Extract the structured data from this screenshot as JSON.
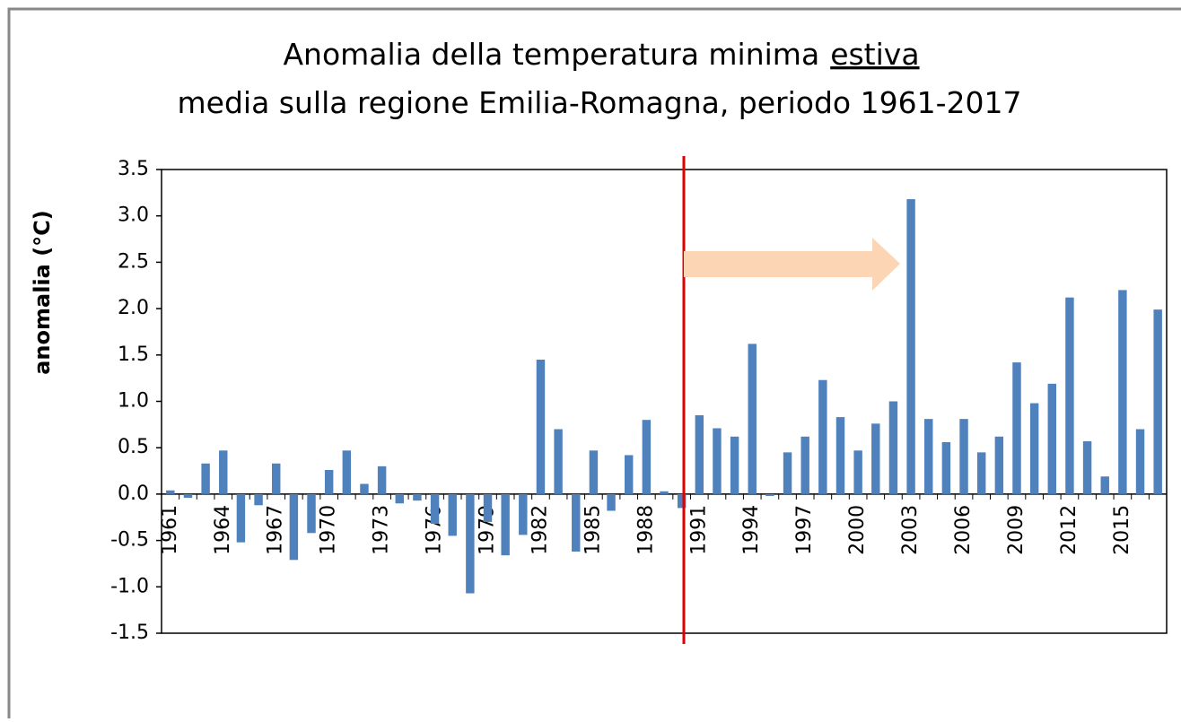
{
  "chart_data": {
    "type": "bar",
    "title": "Anomalia della temperatura minima",
    "title_emphasis": "estiva",
    "subtitle": "media sulla regione Emilia-Romagna, periodo 1961-2017",
    "y_label": "anomalia (°C)",
    "categories": [
      "1961",
      null,
      null,
      "1964",
      null,
      null,
      "1967",
      null,
      null,
      "1970",
      null,
      null,
      "1973",
      null,
      null,
      "1976",
      null,
      null,
      "1979",
      null,
      null,
      "1982",
      null,
      null,
      "1985",
      null,
      null,
      "1988",
      null,
      null,
      "1991",
      null,
      null,
      "1994",
      null,
      null,
      "1997",
      null,
      null,
      "2000",
      null,
      null,
      "2003",
      null,
      null,
      "2006",
      null,
      null,
      "2009",
      null,
      null,
      "2012",
      null,
      null,
      "2015",
      null,
      null
    ],
    "values": [
      0.04,
      -0.04,
      0.33,
      0.47,
      -0.52,
      -0.12,
      0.33,
      -0.71,
      -0.42,
      0.26,
      0.47,
      0.11,
      0.3,
      -0.1,
      -0.07,
      -0.32,
      -0.45,
      -1.07,
      -0.3,
      -0.66,
      -0.44,
      1.45,
      0.7,
      -0.62,
      0.47,
      -0.18,
      0.42,
      0.8,
      0.03,
      -0.15,
      0.85,
      0.71,
      0.62,
      1.62,
      -0.02,
      0.45,
      0.62,
      1.23,
      0.83,
      0.47,
      0.76,
      1.0,
      3.18,
      0.81,
      0.56,
      0.81,
      0.45,
      0.62,
      1.42,
      0.98,
      1.19,
      2.12,
      0.57,
      0.19,
      2.2,
      0.7,
      1.99
    ],
    "color": "#4f81bd",
    "ylim": [
      -1.5,
      3.5
    ],
    "yticks": [
      3.5,
      {
        "value": 3,
        "label": "3.0"
      },
      2.5,
      {
        "value": 2,
        "label": "2.0"
      },
      1.5,
      {
        "value": 1,
        "label": "1.0"
      },
      0.5,
      {
        "value": 0,
        "label": "0.0"
      },
      -0.5,
      {
        "value": -1,
        "label": "-1.0"
      },
      -1.5
    ],
    "grid": false
  }
}
